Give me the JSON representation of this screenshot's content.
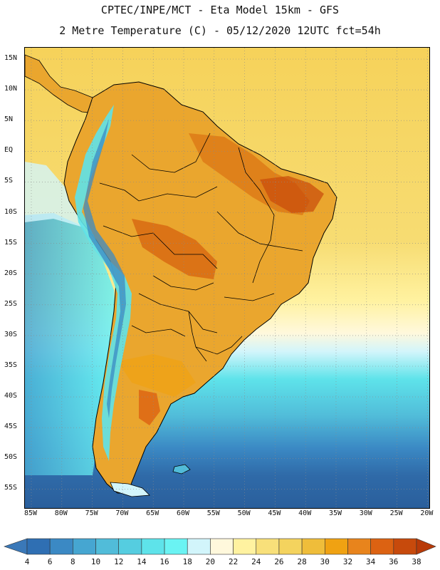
{
  "header": {
    "line1": "CPTEC/INPE/MCT -  Eta Model 15km - GFS",
    "line2": "2 Metre Temperature (C) - 05/12/2020 12UTC fct=54h"
  },
  "map": {
    "region": "South America",
    "variable": "2 Metre Temperature",
    "lat_ticks": [
      "15N",
      "10N",
      "5N",
      "EQ",
      "5S",
      "10S",
      "15S",
      "20S",
      "25S",
      "30S",
      "35S",
      "40S",
      "45S",
      "50S",
      "55S"
    ],
    "lon_ticks": [
      "85W",
      "80W",
      "75W",
      "70W",
      "65W",
      "60W",
      "55W",
      "50W",
      "45W",
      "40W",
      "35W",
      "30W",
      "25W",
      "20W"
    ]
  },
  "colorbar": {
    "labels": [
      "4",
      "6",
      "8",
      "10",
      "12",
      "14",
      "16",
      "18",
      "20",
      "22",
      "24",
      "26",
      "28",
      "30",
      "32",
      "34",
      "36",
      "38"
    ],
    "colors": [
      "#3a78b8",
      "#2f6fb3",
      "#3b89c4",
      "#46a6d1",
      "#51bcd9",
      "#55cde0",
      "#5ee3ea",
      "#6af3f3",
      "#d2f5fb",
      "#fff8dc",
      "#fff2a0",
      "#f8e07a",
      "#f4d35e",
      "#efbd3a",
      "#f0a212",
      "#e8841c",
      "#dc6212",
      "#c74a0c",
      "#b83a08"
    ]
  },
  "colors": {
    "land_hot": "#dd7a16",
    "land_warm": "#eaa62e",
    "land_cool": "#5ee3ea",
    "ocean_warm": "#f6d25a",
    "ocean_cold": "#2f6aa8",
    "border": "#000000",
    "grid": "#8a8a8a"
  }
}
